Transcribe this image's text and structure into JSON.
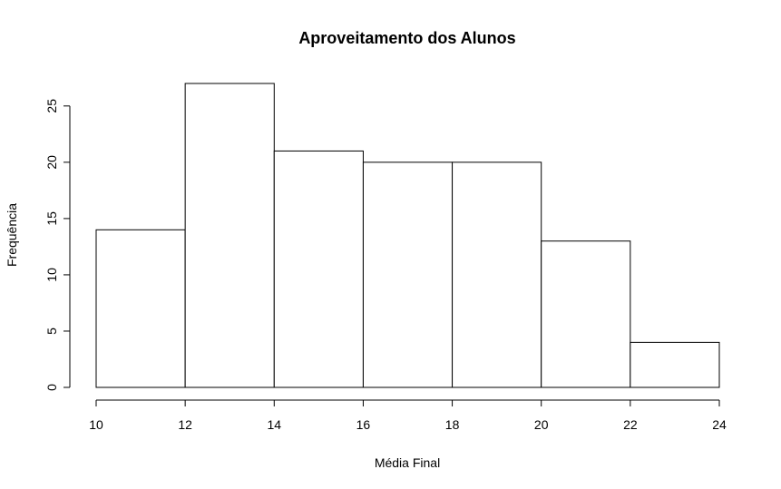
{
  "chart_data": {
    "type": "bar",
    "title": "Aproveitamento dos Alunos",
    "xlabel": "Média Final",
    "ylabel": "Frequência",
    "bins": [
      [
        10,
        12
      ],
      [
        12,
        14
      ],
      [
        14,
        16
      ],
      [
        16,
        18
      ],
      [
        18,
        20
      ],
      [
        20,
        22
      ],
      [
        22,
        24
      ]
    ],
    "values": [
      14,
      27,
      21,
      20,
      20,
      13,
      4
    ],
    "xlim": [
      10,
      24
    ],
    "ylim": [
      0,
      27
    ],
    "x_ticks": [
      "10",
      "12",
      "14",
      "16",
      "18",
      "20",
      "22",
      "24"
    ],
    "y_ticks": [
      "0",
      "5",
      "10",
      "15",
      "20",
      "25"
    ],
    "grid": false,
    "bar_fill": "#ffffff",
    "bar_stroke": "#000000"
  }
}
